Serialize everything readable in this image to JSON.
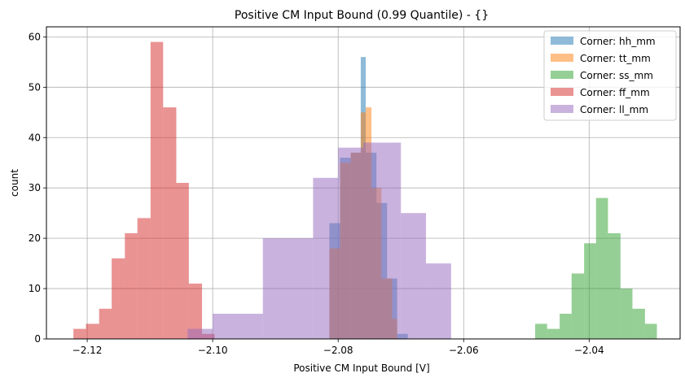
{
  "chart_data": {
    "type": "histogram",
    "title": "Positive CM Input Bound (0.99 Quantile) - {}",
    "xlabel": "Positive CM Input Bound [V]",
    "ylabel": "count",
    "xlim": [
      -2.1265,
      -2.0255
    ],
    "ylim": [
      0,
      62
    ],
    "xticks": [
      -2.12,
      -2.1,
      -2.08,
      -2.06,
      -2.04
    ],
    "xtick_labels": [
      "−2.12",
      "−2.10",
      "−2.08",
      "−2.06",
      "−2.04"
    ],
    "yticks": [
      0,
      10,
      20,
      30,
      40,
      50,
      60
    ],
    "ytick_labels": [
      "0",
      "10",
      "20",
      "30",
      "40",
      "50",
      "60"
    ],
    "grid": true,
    "legend_position": "top-right",
    "series": [
      {
        "name": "Corner: hh_mm",
        "color": "#1f77b4",
        "bins": [
          [
            -2.0814,
            -2.0797,
            23
          ],
          [
            -2.0797,
            -2.078,
            36
          ],
          [
            -2.078,
            -2.0764,
            37
          ],
          [
            -2.0764,
            -2.0756,
            56
          ],
          [
            -2.0756,
            -2.0739,
            37
          ],
          [
            -2.0739,
            -2.0722,
            27
          ],
          [
            -2.0722,
            -2.0706,
            12
          ],
          [
            -2.0706,
            -2.0689,
            1
          ]
        ]
      },
      {
        "name": "Corner: tt_mm",
        "color": "#ff7f0e",
        "bins": [
          [
            -2.0814,
            -2.0797,
            18
          ],
          [
            -2.0797,
            -2.078,
            35
          ],
          [
            -2.078,
            -2.0764,
            37
          ],
          [
            -2.0764,
            -2.0756,
            45
          ],
          [
            -2.0756,
            -2.0747,
            46
          ],
          [
            -2.0747,
            -2.0731,
            30
          ],
          [
            -2.0731,
            -2.0714,
            12
          ],
          [
            -2.0714,
            -2.0706,
            4
          ]
        ]
      },
      {
        "name": "Corner: ss_mm",
        "color": "#2ca02c",
        "bins": [
          [
            -2.0486,
            -2.0467,
            3
          ],
          [
            -2.0467,
            -2.0447,
            2
          ],
          [
            -2.0447,
            -2.0428,
            5
          ],
          [
            -2.0428,
            -2.0408,
            13
          ],
          [
            -2.0408,
            -2.0389,
            19
          ],
          [
            -2.0389,
            -2.037,
            28
          ],
          [
            -2.037,
            -2.035,
            21
          ],
          [
            -2.035,
            -2.0331,
            10
          ],
          [
            -2.0331,
            -2.0311,
            6
          ],
          [
            -2.0311,
            -2.0292,
            3
          ]
        ]
      },
      {
        "name": "Corner: ff_mm",
        "color": "#d62728",
        "bins": [
          [
            -2.1222,
            -2.1202,
            2
          ],
          [
            -2.1202,
            -2.1181,
            3
          ],
          [
            -2.1181,
            -2.1161,
            6
          ],
          [
            -2.1161,
            -2.114,
            16
          ],
          [
            -2.114,
            -2.112,
            21
          ],
          [
            -2.112,
            -2.1099,
            24
          ],
          [
            -2.1099,
            -2.1079,
            59
          ],
          [
            -2.1079,
            -2.1058,
            46
          ],
          [
            -2.1058,
            -2.1038,
            31
          ],
          [
            -2.1038,
            -2.1017,
            11
          ],
          [
            -2.1017,
            -2.0997,
            1
          ]
        ]
      },
      {
        "name": "Corner: ll_mm",
        "color": "#9467bd",
        "bins": [
          [
            -2.104,
            -2.1,
            2
          ],
          [
            -2.1,
            -2.092,
            5
          ],
          [
            -2.092,
            -2.084,
            20
          ],
          [
            -2.084,
            -2.08,
            32
          ],
          [
            -2.08,
            -2.078,
            38
          ],
          [
            -2.078,
            -2.076,
            38
          ],
          [
            -2.076,
            -2.074,
            39
          ],
          [
            -2.074,
            -2.07,
            39
          ],
          [
            -2.07,
            -2.066,
            25
          ],
          [
            -2.066,
            -2.062,
            15
          ]
        ]
      }
    ]
  }
}
